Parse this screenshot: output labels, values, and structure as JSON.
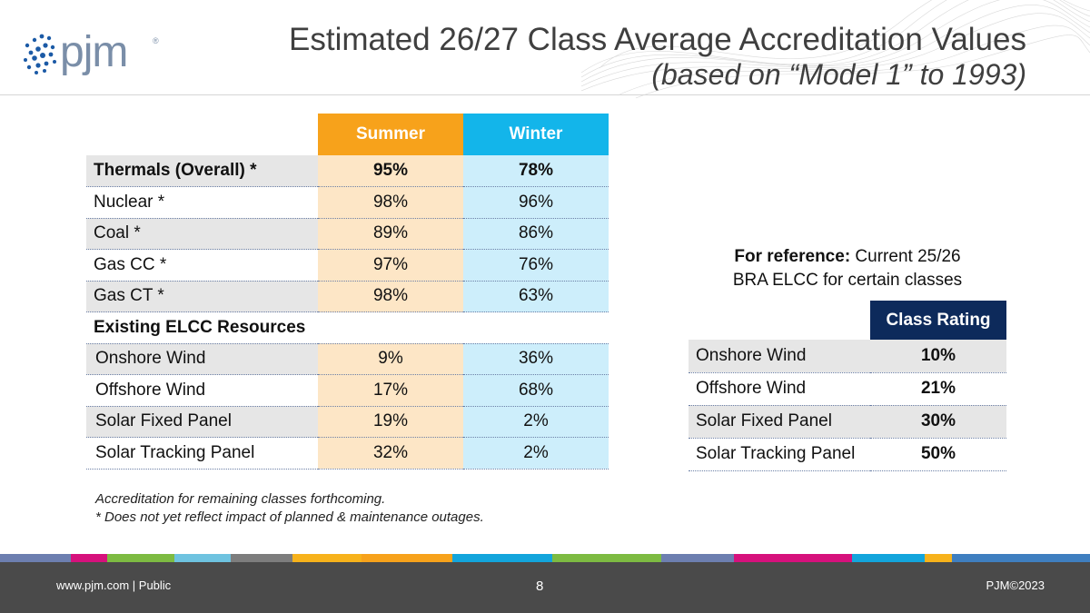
{
  "logo": {
    "text": "pjm",
    "reg": "®"
  },
  "header": {
    "title": "Estimated 26/27 Class Average Accreditation Values",
    "subtitle": "(based on “Model 1” to 1993)"
  },
  "main_table": {
    "col_headers": [
      "Summer",
      "Winter"
    ],
    "rows": [
      {
        "label": "Thermals (Overall) *",
        "summer": "95%",
        "winter": "78%"
      },
      {
        "label": "Nuclear *",
        "summer": "98%",
        "winter": "96%"
      },
      {
        "label": "Coal *",
        "summer": "89%",
        "winter": "86%"
      },
      {
        "label": "Gas CC *",
        "summer": "97%",
        "winter": "76%"
      },
      {
        "label": "Gas CT *",
        "summer": "98%",
        "winter": "63%"
      },
      {
        "label": "Existing ELCC Resources",
        "summer": "",
        "winter": ""
      },
      {
        "label": "Onshore Wind",
        "summer": "9%",
        "winter": "36%"
      },
      {
        "label": "Offshore Wind",
        "summer": "17%",
        "winter": "68%"
      },
      {
        "label": "Solar Fixed Panel",
        "summer": "19%",
        "winter": "2%"
      },
      {
        "label": "Solar Tracking Panel",
        "summer": "32%",
        "winter": "2%"
      }
    ]
  },
  "footnotes": [
    "Accreditation for remaining classes forthcoming.",
    "* Does not yet reflect impact of planned & maintenance outages."
  ],
  "reference": {
    "bold_lead": "For reference:",
    "lead_rest": " Current 25/26",
    "line2": "BRA ELCC for certain classes",
    "col_header": "Class Rating",
    "rows": [
      {
        "label": "Onshore Wind",
        "value": "10%"
      },
      {
        "label": "Offshore Wind",
        "value": "21%"
      },
      {
        "label": "Solar Fixed Panel",
        "value": "30%"
      },
      {
        "label": "Solar Tracking Panel",
        "value": "50%"
      }
    ]
  },
  "footer": {
    "left": "www.pjm.com | Public",
    "page": "8",
    "right": "PJM©2023"
  },
  "colors": {
    "summer": "#f7a21b",
    "winter": "#13b5ea",
    "class_rating": "#0d2a5b",
    "footer_bg": "#4a4a4a"
  }
}
